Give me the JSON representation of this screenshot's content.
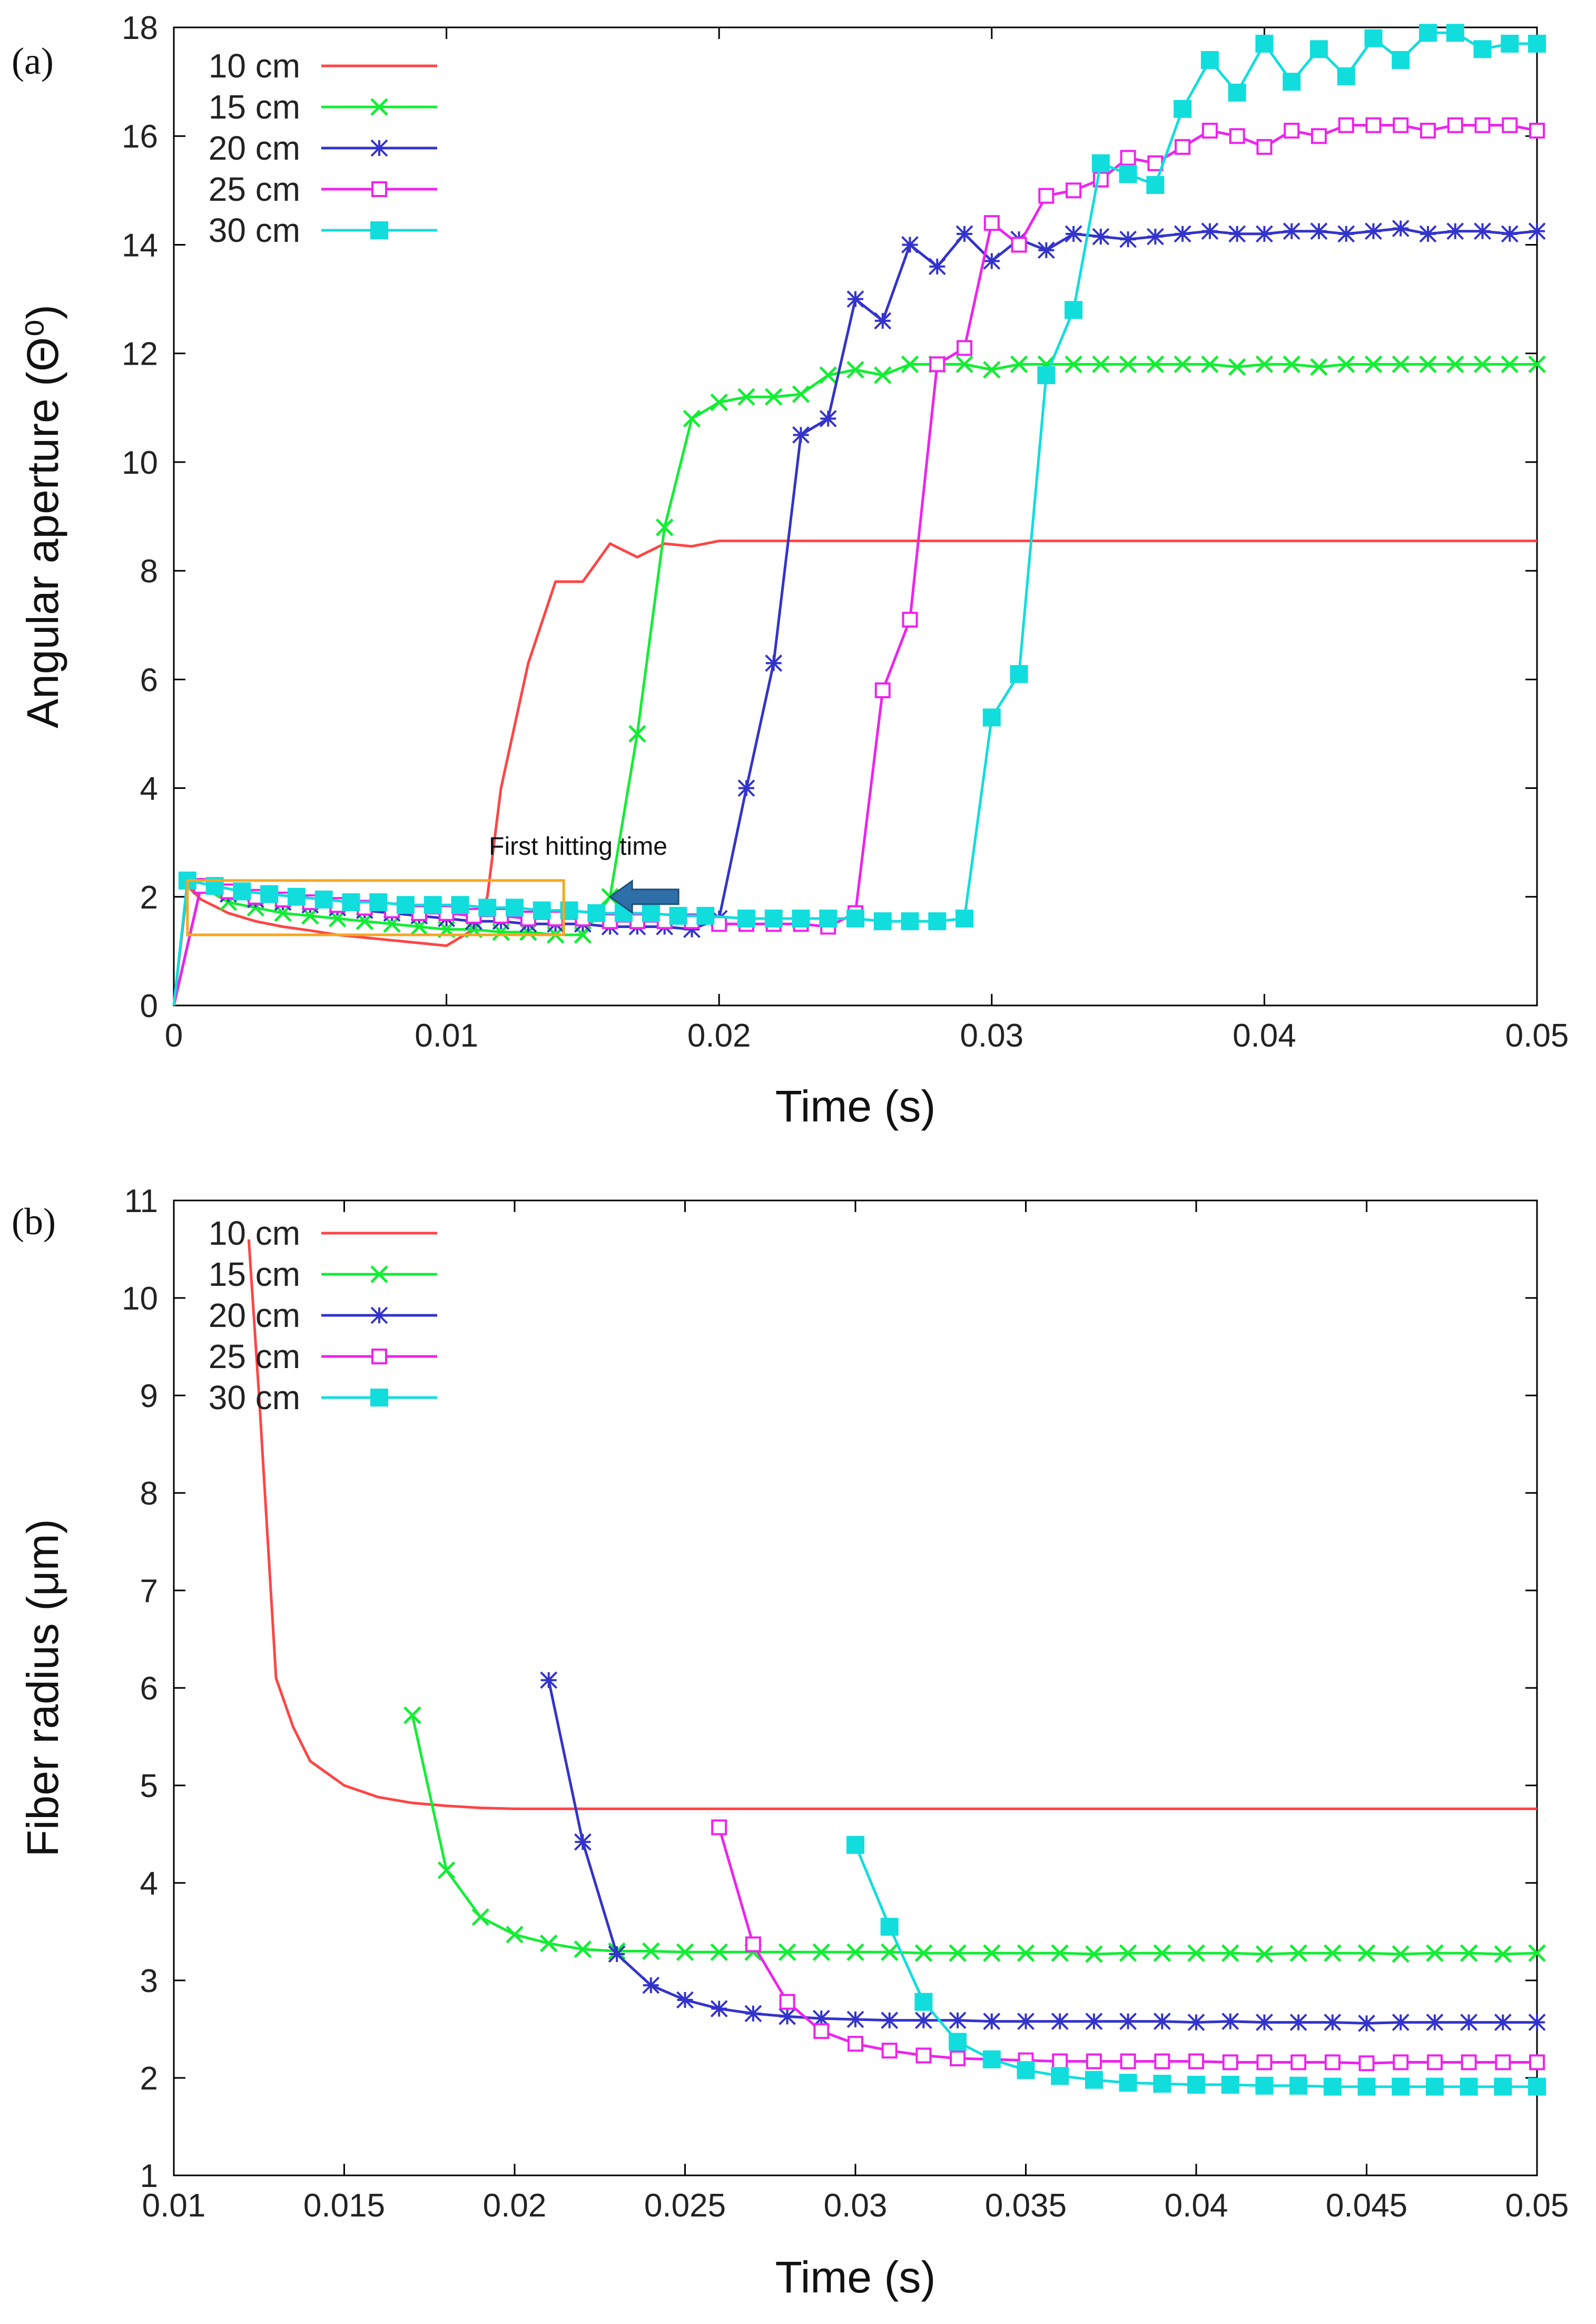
{
  "chart_data": [
    {
      "id": "a",
      "panel_label": "(a)",
      "type": "line",
      "xlabel": "Time (s)",
      "ylabel": "Angular aperture (Θ⁰)",
      "xlim": [
        0,
        0.05
      ],
      "ylim": [
        0,
        18
      ],
      "xticks": [
        0,
        0.01,
        0.02,
        0.03,
        0.04,
        0.05
      ],
      "xtick_labels": [
        "0",
        "0.01",
        "0.02",
        "0.03",
        "0.04",
        "0.05"
      ],
      "yticks": [
        0,
        2,
        4,
        6,
        8,
        10,
        12,
        14,
        16,
        18
      ],
      "ytick_labels": [
        "0",
        "2",
        "4",
        "6",
        "8",
        "10",
        "12",
        "14",
        "16",
        "18"
      ],
      "legend_position": "top-left",
      "annotation": {
        "text": "First hitting time",
        "arrow_points_to": [
          0.016,
          2.0
        ],
        "box": {
          "x": [
            0.0005,
            0.0143
          ],
          "y": [
            1.3,
            2.3
          ]
        }
      },
      "series": [
        {
          "name": "10 cm",
          "color": "#ff4444",
          "marker": "none",
          "x": [
            0,
            0.0005,
            0.001,
            0.002,
            0.003,
            0.004,
            0.005,
            0.006,
            0.007,
            0.008,
            0.009,
            0.01,
            0.011,
            0.0115,
            0.012,
            0.013,
            0.014,
            0.015,
            0.016,
            0.017,
            0.018,
            0.019,
            0.02,
            0.022,
            0.025,
            0.03,
            0.035,
            0.04,
            0.045,
            0.05
          ],
          "y": [
            0,
            2.2,
            1.95,
            1.7,
            1.55,
            1.45,
            1.38,
            1.3,
            1.25,
            1.2,
            1.15,
            1.1,
            1.4,
            2.0,
            4.0,
            6.3,
            7.8,
            7.8,
            8.5,
            8.25,
            8.5,
            8.45,
            8.55,
            8.55,
            8.55,
            8.55,
            8.55,
            8.55,
            8.55,
            8.55
          ]
        },
        {
          "name": "15 cm",
          "color": "#11ee33",
          "marker": "x",
          "x": [
            0,
            0.001,
            0.002,
            0.003,
            0.004,
            0.005,
            0.006,
            0.007,
            0.008,
            0.009,
            0.01,
            0.011,
            0.012,
            0.013,
            0.014,
            0.015,
            0.016,
            0.017,
            0.018,
            0.019,
            0.02,
            0.021,
            0.022,
            0.023,
            0.024,
            0.025,
            0.026,
            0.027,
            0.028,
            0.029,
            0.03,
            0.031,
            0.032,
            0.033,
            0.034,
            0.035,
            0.036,
            0.037,
            0.038,
            0.039,
            0.04,
            0.041,
            0.042,
            0.043,
            0.044,
            0.045,
            0.046,
            0.047,
            0.048,
            0.049,
            0.05
          ],
          "y": [
            0,
            2.2,
            1.9,
            1.8,
            1.7,
            1.65,
            1.6,
            1.55,
            1.5,
            1.45,
            1.4,
            1.4,
            1.35,
            1.35,
            1.3,
            1.3,
            2.0,
            5.0,
            8.8,
            10.8,
            11.1,
            11.2,
            11.2,
            11.25,
            11.6,
            11.7,
            11.6,
            11.8,
            11.8,
            11.8,
            11.7,
            11.8,
            11.8,
            11.8,
            11.8,
            11.8,
            11.8,
            11.8,
            11.8,
            11.75,
            11.8,
            11.8,
            11.75,
            11.8,
            11.8,
            11.8,
            11.8,
            11.8,
            11.8,
            11.8,
            11.8
          ]
        },
        {
          "name": "20 cm",
          "color": "#3333cc",
          "marker": "asterisk",
          "x": [
            0,
            0.001,
            0.002,
            0.003,
            0.004,
            0.005,
            0.006,
            0.007,
            0.008,
            0.009,
            0.01,
            0.011,
            0.012,
            0.013,
            0.014,
            0.015,
            0.016,
            0.017,
            0.018,
            0.019,
            0.02,
            0.021,
            0.022,
            0.023,
            0.024,
            0.025,
            0.026,
            0.027,
            0.028,
            0.029,
            0.03,
            0.031,
            0.032,
            0.033,
            0.034,
            0.035,
            0.036,
            0.037,
            0.038,
            0.039,
            0.04,
            0.041,
            0.042,
            0.043,
            0.044,
            0.045,
            0.046,
            0.047,
            0.048,
            0.049,
            0.05
          ],
          "y": [
            0,
            2.2,
            2.05,
            1.95,
            1.9,
            1.85,
            1.8,
            1.75,
            1.7,
            1.65,
            1.6,
            1.55,
            1.55,
            1.5,
            1.5,
            1.5,
            1.45,
            1.45,
            1.45,
            1.4,
            1.6,
            4.0,
            6.3,
            10.5,
            10.8,
            13.0,
            12.6,
            14.0,
            13.6,
            14.2,
            13.7,
            14.1,
            13.9,
            14.2,
            14.15,
            14.1,
            14.15,
            14.2,
            14.25,
            14.2,
            14.2,
            14.25,
            14.25,
            14.2,
            14.25,
            14.3,
            14.2,
            14.25,
            14.25,
            14.2,
            14.25
          ]
        },
        {
          "name": "25 cm",
          "color": "#ee22ee",
          "marker": "square-open",
          "x": [
            0,
            0.001,
            0.002,
            0.003,
            0.004,
            0.005,
            0.006,
            0.007,
            0.008,
            0.009,
            0.01,
            0.011,
            0.012,
            0.013,
            0.014,
            0.015,
            0.016,
            0.017,
            0.018,
            0.019,
            0.02,
            0.021,
            0.022,
            0.023,
            0.024,
            0.025,
            0.026,
            0.027,
            0.028,
            0.029,
            0.03,
            0.031,
            0.032,
            0.033,
            0.034,
            0.035,
            0.036,
            0.037,
            0.038,
            0.039,
            0.04,
            0.041,
            0.042,
            0.043,
            0.044,
            0.045,
            0.046,
            0.047,
            0.048,
            0.049,
            0.05
          ],
          "y": [
            0,
            2.2,
            2.1,
            2.0,
            1.95,
            1.9,
            1.85,
            1.8,
            1.75,
            1.7,
            1.7,
            1.65,
            1.65,
            1.6,
            1.6,
            1.6,
            1.55,
            1.55,
            1.55,
            1.55,
            1.5,
            1.5,
            1.5,
            1.5,
            1.45,
            1.7,
            5.8,
            7.1,
            11.8,
            12.1,
            14.4,
            14.0,
            14.9,
            15.0,
            15.2,
            15.6,
            15.5,
            15.8,
            16.1,
            16.0,
            15.8,
            16.1,
            16.0,
            16.2,
            16.2,
            16.2,
            16.1,
            16.2,
            16.2,
            16.2,
            16.1
          ]
        },
        {
          "name": "30 cm",
          "color": "#11dddd",
          "marker": "square-filled",
          "x": [
            0,
            0.0005,
            0.0015,
            0.0025,
            0.0035,
            0.0045,
            0.0055,
            0.0065,
            0.0075,
            0.0085,
            0.0095,
            0.0105,
            0.0115,
            0.0125,
            0.0135,
            0.0145,
            0.0155,
            0.0165,
            0.0175,
            0.0185,
            0.0195,
            0.021,
            0.022,
            0.023,
            0.024,
            0.025,
            0.026,
            0.027,
            0.028,
            0.029,
            0.03,
            0.031,
            0.032,
            0.033,
            0.034,
            0.035,
            0.036,
            0.037,
            0.038,
            0.039,
            0.04,
            0.041,
            0.042,
            0.043,
            0.044,
            0.045,
            0.046,
            0.047,
            0.048,
            0.049,
            0.05
          ],
          "y": [
            0,
            2.3,
            2.2,
            2.1,
            2.05,
            2.0,
            1.95,
            1.9,
            1.9,
            1.85,
            1.85,
            1.85,
            1.8,
            1.8,
            1.75,
            1.75,
            1.7,
            1.7,
            1.7,
            1.65,
            1.65,
            1.6,
            1.6,
            1.6,
            1.6,
            1.6,
            1.55,
            1.55,
            1.55,
            1.6,
            5.3,
            6.1,
            11.6,
            12.8,
            15.5,
            15.3,
            15.1,
            16.5,
            17.4,
            16.8,
            17.7,
            17.0,
            17.6,
            17.1,
            17.8,
            17.4,
            17.9,
            17.9,
            17.6,
            17.7,
            17.7
          ]
        }
      ]
    },
    {
      "id": "b",
      "panel_label": "(b)",
      "type": "line",
      "xlabel": "Time (s)",
      "ylabel": "Fiber radius  (μm)",
      "xlim": [
        0.01,
        0.05
      ],
      "ylim": [
        1,
        11
      ],
      "xticks": [
        0.01,
        0.015,
        0.02,
        0.025,
        0.03,
        0.035,
        0.04,
        0.045,
        0.05
      ],
      "xtick_labels": [
        "0.01",
        "0.015",
        "0.02",
        "0.025",
        "0.03",
        "0.035",
        "0.04",
        "0.045",
        "0.05"
      ],
      "yticks": [
        1,
        2,
        3,
        4,
        5,
        6,
        7,
        8,
        9,
        10,
        11
      ],
      "ytick_labels": [
        "1",
        "2",
        "3",
        "4",
        "5",
        "6",
        "7",
        "8",
        "9",
        "10",
        "11"
      ],
      "legend_position": "top-left",
      "series": [
        {
          "name": "10 cm",
          "color": "#ff4444",
          "marker": "none",
          "x": [
            0.0122,
            0.0125,
            0.013,
            0.0135,
            0.014,
            0.015,
            0.016,
            0.017,
            0.018,
            0.019,
            0.02,
            0.025,
            0.03,
            0.035,
            0.04,
            0.045,
            0.05
          ],
          "y": [
            10.6,
            9.0,
            6.1,
            5.6,
            5.25,
            5.0,
            4.88,
            4.82,
            4.79,
            4.77,
            4.76,
            4.76,
            4.76,
            4.76,
            4.76,
            4.76,
            4.76
          ]
        },
        {
          "name": "15 cm",
          "color": "#11ee33",
          "marker": "x",
          "x": [
            0.017,
            0.018,
            0.019,
            0.02,
            0.021,
            0.022,
            0.023,
            0.024,
            0.025,
            0.026,
            0.027,
            0.028,
            0.029,
            0.03,
            0.031,
            0.032,
            0.033,
            0.034,
            0.035,
            0.036,
            0.037,
            0.038,
            0.039,
            0.04,
            0.041,
            0.042,
            0.043,
            0.044,
            0.045,
            0.046,
            0.047,
            0.048,
            0.049,
            0.05
          ],
          "y": [
            5.72,
            4.13,
            3.65,
            3.47,
            3.38,
            3.32,
            3.3,
            3.3,
            3.29,
            3.29,
            3.29,
            3.29,
            3.29,
            3.29,
            3.29,
            3.28,
            3.28,
            3.28,
            3.28,
            3.28,
            3.27,
            3.28,
            3.28,
            3.28,
            3.28,
            3.27,
            3.28,
            3.28,
            3.28,
            3.27,
            3.28,
            3.28,
            3.27,
            3.28
          ]
        },
        {
          "name": "20 cm",
          "color": "#3333cc",
          "marker": "asterisk",
          "x": [
            0.021,
            0.022,
            0.023,
            0.024,
            0.025,
            0.026,
            0.027,
            0.028,
            0.029,
            0.03,
            0.031,
            0.032,
            0.033,
            0.034,
            0.035,
            0.036,
            0.037,
            0.038,
            0.039,
            0.04,
            0.041,
            0.042,
            0.043,
            0.044,
            0.045,
            0.046,
            0.047,
            0.048,
            0.049,
            0.05
          ],
          "y": [
            6.08,
            4.42,
            3.27,
            2.95,
            2.8,
            2.71,
            2.66,
            2.63,
            2.61,
            2.6,
            2.59,
            2.59,
            2.59,
            2.58,
            2.58,
            2.58,
            2.58,
            2.58,
            2.58,
            2.57,
            2.58,
            2.57,
            2.57,
            2.57,
            2.56,
            2.57,
            2.57,
            2.57,
            2.57,
            2.57
          ]
        },
        {
          "name": "25 cm",
          "color": "#ee22ee",
          "marker": "square-open",
          "x": [
            0.026,
            0.027,
            0.028,
            0.029,
            0.03,
            0.031,
            0.032,
            0.033,
            0.034,
            0.035,
            0.036,
            0.037,
            0.038,
            0.039,
            0.04,
            0.041,
            0.042,
            0.043,
            0.044,
            0.045,
            0.046,
            0.047,
            0.048,
            0.049,
            0.05
          ],
          "y": [
            4.57,
            3.37,
            2.78,
            2.48,
            2.35,
            2.28,
            2.23,
            2.2,
            2.19,
            2.18,
            2.17,
            2.17,
            2.17,
            2.17,
            2.17,
            2.16,
            2.16,
            2.16,
            2.16,
            2.15,
            2.16,
            2.16,
            2.16,
            2.16,
            2.16
          ]
        },
        {
          "name": "30 cm",
          "color": "#11dddd",
          "marker": "square-filled",
          "x": [
            0.03,
            0.031,
            0.032,
            0.033,
            0.034,
            0.035,
            0.036,
            0.037,
            0.038,
            0.039,
            0.04,
            0.041,
            0.042,
            0.043,
            0.044,
            0.045,
            0.046,
            0.047,
            0.048,
            0.049,
            0.05
          ],
          "y": [
            4.39,
            3.55,
            2.78,
            2.37,
            2.19,
            2.08,
            2.02,
            1.98,
            1.95,
            1.94,
            1.93,
            1.93,
            1.92,
            1.92,
            1.91,
            1.91,
            1.91,
            1.91,
            1.91,
            1.91,
            1.91
          ]
        }
      ]
    }
  ]
}
